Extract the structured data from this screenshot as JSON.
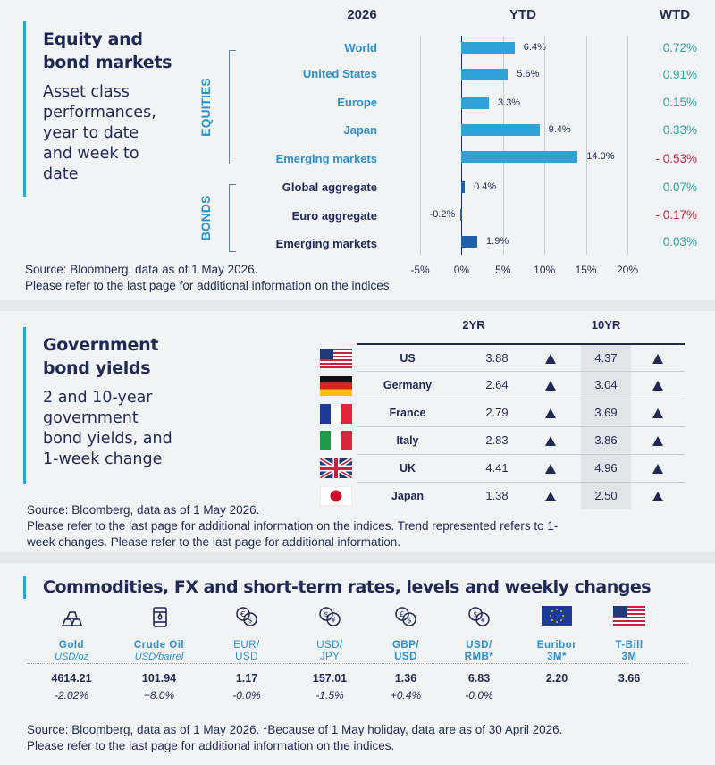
{
  "equity": {
    "heading_line1": "Equity and",
    "heading_line2": "bond markets",
    "sub_lines": [
      "Asset class",
      "performances,",
      "year to date",
      "and week to",
      "date"
    ],
    "year_header": "2026",
    "ytd_header": "YTD",
    "wtd_header": "WTD",
    "group_equities": "EQUITIES",
    "group_bonds": "BONDS",
    "axis_ticks": [
      "-5%",
      "0%",
      "5%",
      "10%",
      "15%",
      "20%"
    ],
    "source_line1": "Source: Bloomberg, data as of 1  May  2026.",
    "source_line2": "Please refer to the last page for additional information on the indices."
  },
  "chart_data": {
    "type": "bar",
    "categories": [
      "World",
      "United States",
      "Europe",
      "Japan",
      "Emerging  markets",
      "Global aggregate",
      "Euro aggregate",
      "Emerging  markets"
    ],
    "groups": [
      "equities",
      "equities",
      "equities",
      "equities",
      "equities",
      "bonds",
      "bonds",
      "bonds"
    ],
    "values": [
      6.4,
      5.6,
      3.3,
      9.4,
      14.0,
      0.4,
      -0.2,
      1.9
    ],
    "value_labels": [
      "6.4%",
      "5.6%",
      "3.3%",
      "9.4%",
      "14.0%",
      "0.4%",
      "-0.2%",
      "1.9%"
    ],
    "wtd": [
      "0.72%",
      "0.91%",
      "0.15%",
      "0.33%",
      "- 0.53%",
      "0.07%",
      "- 0.17%",
      "0.03%"
    ],
    "wtd_negative": [
      false,
      false,
      false,
      false,
      true,
      false,
      true,
      false
    ],
    "xlim": [
      -5,
      20
    ],
    "colors": {
      "equity_bar": "#2fa3d6",
      "bond_bar": "#1f5fb0",
      "positive": "#2aa7a0",
      "negative": "#c8243f"
    }
  },
  "yields": {
    "heading_line1": "Government",
    "heading_line2": "bond yields",
    "sub_lines": [
      "2 and 10-year",
      "government",
      "bond yields, and",
      "1-week change"
    ],
    "col_2yr": "2YR",
    "col_10yr": "10YR",
    "rows": [
      {
        "country": "US",
        "y2": "3.88",
        "y10": "4.37",
        "flag": "us-flag-icon"
      },
      {
        "country": "Germany",
        "y2": "2.64",
        "y10": "3.04",
        "flag": "germany-flag-icon"
      },
      {
        "country": "France",
        "y2": "2.79",
        "y10": "3.69",
        "flag": "france-flag-icon"
      },
      {
        "country": "Italy",
        "y2": "2.83",
        "y10": "3.86",
        "flag": "italy-flag-icon"
      },
      {
        "country": "UK",
        "y2": "4.41",
        "y10": "4.96",
        "flag": "uk-flag-icon"
      },
      {
        "country": "Japan",
        "y2": "1.38",
        "y10": "2.50",
        "flag": "japan-flag-icon"
      }
    ],
    "trend_2yr": [
      "up",
      "up",
      "up",
      "up",
      "up",
      "up"
    ],
    "trend_10yr": [
      "up",
      "up",
      "up",
      "up",
      "up",
      "up"
    ],
    "source_line1": "Source: Bloomberg, data as of 1 May 2026.",
    "source_line2": "Please refer to the last page for additional information on the indices. Trend represented refers to 1-",
    "source_line3": "week changes. Please refer to the last page for additional information."
  },
  "commodities": {
    "heading": "Commodities, FX and short-term rates, levels and weekly changes",
    "items": [
      {
        "name": "Gold",
        "unit": "USD/oz",
        "value": "4614.21",
        "change": "-2.02%",
        "icon": "gold-bars-icon"
      },
      {
        "name": "Crude Oil",
        "unit": "USD/barrel",
        "value": "101.94",
        "change": "+8.0%",
        "icon": "oil-barrel-icon"
      },
      {
        "name": "EUR/",
        "unit": "USD",
        "value": "1.17",
        "change": "-0.0%",
        "icon": "euro-dollar-icon"
      },
      {
        "name": "USD/",
        "unit": "JPY",
        "value": "157.01",
        "change": "-1.5%",
        "icon": "dollar-yen-icon"
      },
      {
        "name": "GBP/",
        "unit": "USD",
        "value": "1.36",
        "change": "+0.4%",
        "icon": "pound-dollar-icon"
      },
      {
        "name": "USD/",
        "unit": "RMB*",
        "value": "6.83",
        "change": "-0.0%",
        "icon": "dollar-yuan-icon"
      },
      {
        "name": "Euribor",
        "unit": "3M*",
        "value": "2.20",
        "change": "",
        "icon": "eu-flag-icon"
      },
      {
        "name": "T-Bill",
        "unit": "3M",
        "value": "3.66",
        "change": "",
        "icon": "us-flag-icon"
      }
    ],
    "source_line1": "Source: Bloomberg, data as of 1  May 2026. *Because of 1 May holiday, data are as of 30 April 2026.",
    "source_line2": "Please refer to the last page for additional information on the indices."
  }
}
